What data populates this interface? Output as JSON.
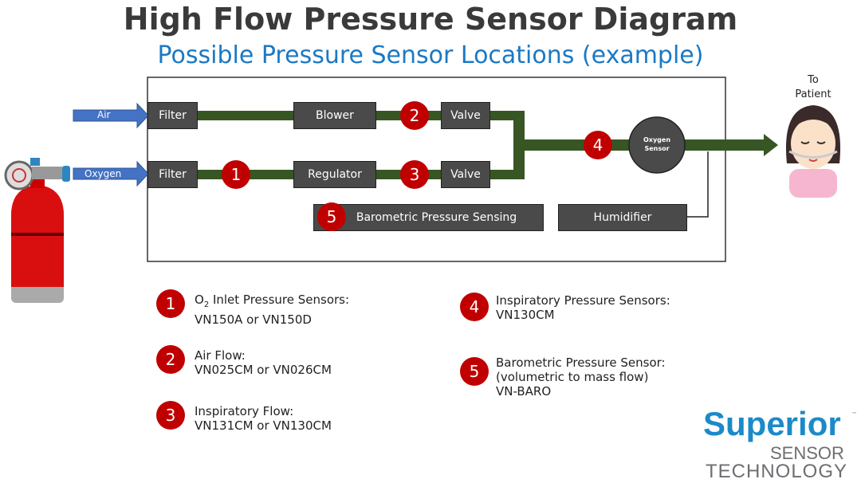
{
  "title": "High Flow Pressure Sensor Diagram",
  "subtitle": "Possible Pressure Sensor Locations (example)",
  "inputs": {
    "air": "Air",
    "oxygen": "Oxygen"
  },
  "blocks": {
    "filter_air": "Filter",
    "filter_oxygen": "Filter",
    "blower": "Blower",
    "regulator": "Regulator",
    "valve_air": "Valve",
    "valve_oxygen": "Valve",
    "oxygen_sensor_line1": "Oxygen",
    "oxygen_sensor_line2": "Sensor",
    "barometric": "Barometric Pressure Sensing",
    "humidifier": "Humidifier"
  },
  "patient": {
    "line1": "To",
    "line2": "Patient"
  },
  "markers": [
    "1",
    "2",
    "3",
    "4",
    "5"
  ],
  "legend": [
    {
      "num": "1",
      "line1_pre": "O",
      "line1_sub": "2",
      "line1_post": " Inlet Pressure Sensors:",
      "line2": "VN150A or VN150D"
    },
    {
      "num": "2",
      "line1": "Air Flow:",
      "line2": "VN025CM or VN026CM"
    },
    {
      "num": "3",
      "line1": "Inspiratory Flow:",
      "line2": "VN131CM or VN130CM"
    },
    {
      "num": "4",
      "line1": "Inspiratory Pressure Sensors:",
      "line2": "VN130CM"
    },
    {
      "num": "5",
      "line1": "Barometric Pressure Sensor:",
      "line2": "(volumetric to mass flow)",
      "line3": "VN-BARO"
    }
  ],
  "logo": {
    "line1": "Superior",
    "line2": "SENSOR",
    "line3": "TECHNOLOGY",
    "tm": "™"
  },
  "colors": {
    "pipe": "#375623",
    "marker": "#c00000",
    "block": "#4a4a4a",
    "arrow": "#4472c4",
    "subtitle": "#1b79c4"
  }
}
